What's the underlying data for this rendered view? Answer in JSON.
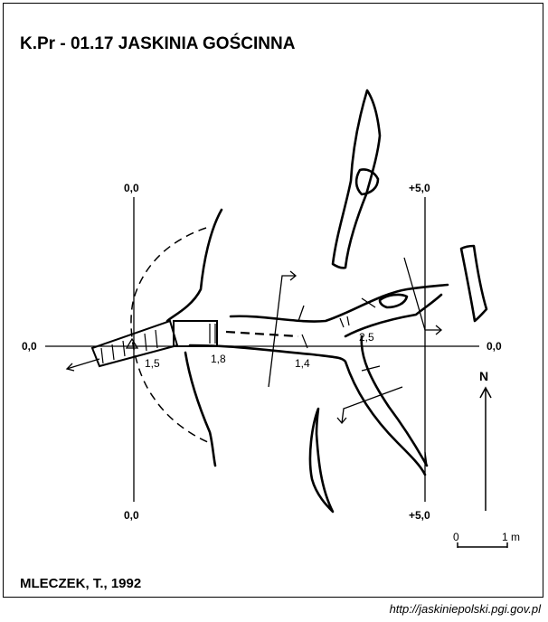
{
  "title": "K.Pr - 01.17 JASKINIA GOŚCINNA",
  "author": "MLECZEK, T., 1992",
  "url": "http://jaskiniepolski.pgi.gov.pl",
  "section_labels": {
    "left_top": "0,0",
    "left_bottom": "0,0",
    "right_top": "+5,0",
    "right_bottom": "+5,0",
    "horizontal_left": "0,0",
    "horizontal_right": "0,0"
  },
  "heights": [
    "1,5",
    "1,8",
    "1,4",
    "2,5"
  ],
  "north": "N",
  "scale": {
    "start": "0",
    "end": "1 m"
  }
}
